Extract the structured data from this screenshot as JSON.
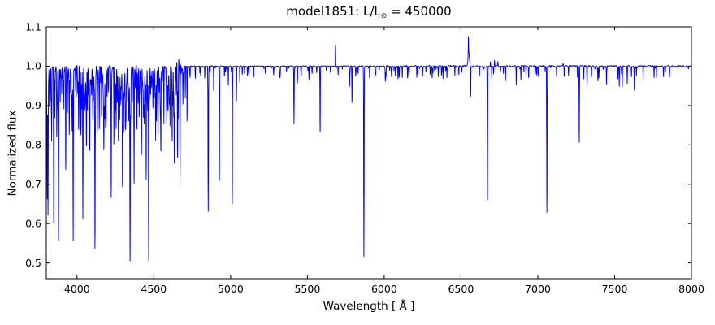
{
  "chart_data": {
    "type": "line",
    "title": {
      "main": "model1851: L/L",
      "sub": "⊙",
      "tail": " = 450000"
    },
    "xlabel": "Wavelength [ Å ]",
    "ylabel": "Normalized flux",
    "xlim": [
      3800,
      8000
    ],
    "ylim": [
      0.46,
      1.1
    ],
    "grid": false,
    "legend": "none",
    "line_color": "#0000ff",
    "background": "#ffffff",
    "xticks": [
      {
        "v": 4000,
        "label": "4000"
      },
      {
        "v": 4500,
        "label": "4500"
      },
      {
        "v": 5000,
        "label": "5000"
      },
      {
        "v": 5500,
        "label": "5500"
      },
      {
        "v": 6000,
        "label": "6000"
      },
      {
        "v": 6500,
        "label": "6500"
      },
      {
        "v": 7000,
        "label": "7000"
      },
      {
        "v": 7500,
        "label": "7500"
      },
      {
        "v": 8000,
        "label": "8000"
      }
    ],
    "yticks": [
      {
        "v": 0.5,
        "label": "0.5"
      },
      {
        "v": 0.6,
        "label": "0.6"
      },
      {
        "v": 0.7,
        "label": "0.7"
      },
      {
        "v": 0.8,
        "label": "0.8"
      },
      {
        "v": 0.9,
        "label": "0.9"
      },
      {
        "v": 1.0,
        "label": "1.0"
      },
      {
        "v": 1.1,
        "label": "1.1"
      }
    ],
    "spectrum": {
      "continuum": 1.0,
      "sample_step": 0.7,
      "absorption_lines": [
        [
          3806,
          0.7,
          1.2
        ],
        [
          3811,
          0.644,
          1.3
        ],
        [
          3820,
          0.9,
          1.0
        ],
        [
          3835,
          0.82,
          1.2
        ],
        [
          3848,
          0.603,
          1.3
        ],
        [
          3856,
          0.9,
          1.0
        ],
        [
          3868,
          0.88,
          1.0
        ],
        [
          3879,
          0.566,
          1.4
        ],
        [
          3890,
          0.92,
          1.0
        ],
        [
          3900,
          0.93,
          1.0
        ],
        [
          3913,
          0.9,
          1.0
        ],
        [
          3926,
          0.82,
          1.2
        ],
        [
          3938,
          0.93,
          1.0
        ],
        [
          3950,
          0.854,
          1.1
        ],
        [
          3964,
          0.91,
          1.0
        ],
        [
          3975,
          0.556,
          1.4
        ],
        [
          3995,
          0.93,
          1.0
        ],
        [
          4010,
          0.86,
          1.1
        ],
        [
          4026,
          0.83,
          1.2
        ],
        [
          4038,
          0.764,
          1.3
        ],
        [
          4050,
          0.92,
          1.0
        ],
        [
          4062,
          0.84,
          1.1
        ],
        [
          4080,
          0.875,
          1.0
        ],
        [
          4095,
          0.93,
          1.0
        ],
        [
          4117,
          0.535,
          1.5
        ],
        [
          4132,
          0.89,
          1.0
        ],
        [
          4145,
          0.854,
          1.1
        ],
        [
          4160,
          0.881,
          1.0
        ],
        [
          4175,
          0.93,
          1.0
        ],
        [
          4190,
          0.92,
          1.0
        ],
        [
          4205,
          0.94,
          1.0
        ],
        [
          4223,
          0.737,
          1.3
        ],
        [
          4240,
          0.805,
          1.1
        ],
        [
          4255,
          0.92,
          1.0
        ],
        [
          4270,
          0.854,
          1.1
        ],
        [
          4285,
          0.93,
          1.0
        ],
        [
          4300,
          0.895,
          1.0
        ],
        [
          4315,
          0.94,
          1.0
        ],
        [
          4345,
          0.545,
          1.5
        ],
        [
          4360,
          0.91,
          1.0
        ],
        [
          4372,
          0.829,
          1.1
        ],
        [
          4390,
          0.84,
          1.1
        ],
        [
          4405,
          0.93,
          1.0
        ],
        [
          4420,
          0.86,
          1.0
        ],
        [
          4435,
          0.92,
          1.0
        ],
        [
          4450,
          0.856,
          1.1
        ],
        [
          4467,
          0.535,
          1.5
        ],
        [
          4480,
          0.95,
          0.9
        ],
        [
          4512,
          0.881,
          1.0
        ],
        [
          4527,
          0.846,
          1.0
        ],
        [
          4546,
          0.86,
          1.0
        ],
        [
          4566,
          0.871,
          1.0
        ],
        [
          4585,
          0.93,
          1.0
        ],
        [
          4606,
          0.86,
          1.0
        ],
        [
          4620,
          0.88,
          1.0
        ],
        [
          4634,
          0.86,
          1.0
        ],
        [
          4655,
          0.762,
          1.2
        ],
        [
          4671,
          0.784,
          1.2
        ],
        [
          4690,
          0.93,
          1.0
        ],
        [
          4705,
          0.92,
          1.0
        ],
        [
          4716,
          0.86,
          1.1
        ],
        [
          4770,
          0.969,
          1.0
        ],
        [
          4805,
          0.975,
          1.0
        ],
        [
          4832,
          0.97,
          1.0
        ],
        [
          4854,
          0.63,
          1.5
        ],
        [
          4890,
          0.938,
          1.0
        ],
        [
          4927,
          0.71,
          1.3
        ],
        [
          4960,
          0.975,
          1.0
        ],
        [
          4985,
          0.952,
          1.0
        ],
        [
          5011,
          0.65,
          1.3
        ],
        [
          5038,
          0.918,
          1.1
        ],
        [
          5060,
          0.96,
          1.0
        ],
        [
          5110,
          0.978,
          1.0
        ],
        [
          5150,
          0.972,
          1.0
        ],
        [
          5226,
          0.982,
          1.0
        ],
        [
          5280,
          0.978,
          1.0
        ],
        [
          5320,
          0.975,
          1.0
        ],
        [
          5413,
          0.856,
          1.3
        ],
        [
          5435,
          0.958,
          1.0
        ],
        [
          5460,
          0.978,
          1.0
        ],
        [
          5510,
          0.965,
          1.0
        ],
        [
          5583,
          0.833,
          1.3
        ],
        [
          5650,
          0.985,
          1.0
        ],
        [
          5700,
          0.978,
          1.0
        ],
        [
          5775,
          0.952,
          1.0
        ],
        [
          5790,
          0.908,
          1.1
        ],
        [
          5868,
          0.517,
          1.5
        ],
        [
          5905,
          0.97,
          1.0
        ],
        [
          5945,
          0.978,
          1.0
        ],
        [
          6012,
          0.975,
          1.0
        ],
        [
          6047,
          0.975,
          1.0
        ],
        [
          6090,
          0.968,
          1.0
        ],
        [
          6118,
          0.972,
          1.0
        ],
        [
          6152,
          0.968,
          1.0
        ],
        [
          6212,
          0.973,
          1.0
        ],
        [
          6250,
          0.978,
          1.0
        ],
        [
          6312,
          0.974,
          1.0
        ],
        [
          6352,
          0.975,
          1.0
        ],
        [
          6408,
          0.97,
          1.0
        ],
        [
          6460,
          0.975,
          1.0
        ],
        [
          6505,
          0.985,
          1.0
        ],
        [
          6563,
          0.923,
          1.2
        ],
        [
          6620,
          0.975,
          1.0
        ],
        [
          6672,
          0.661,
          1.4
        ],
        [
          6700,
          0.97,
          1.0
        ],
        [
          6790,
          0.962,
          1.0
        ],
        [
          6860,
          0.955,
          1.0
        ],
        [
          6890,
          0.965,
          1.0
        ],
        [
          6940,
          0.972,
          1.0
        ],
        [
          7002,
          0.975,
          1.0
        ],
        [
          7059,
          0.628,
          1.4
        ],
        [
          7122,
          0.975,
          1.0
        ],
        [
          7172,
          0.973,
          1.0
        ],
        [
          7200,
          0.978,
          1.0
        ],
        [
          7270,
          0.805,
          1.3
        ],
        [
          7320,
          0.962,
          1.0
        ],
        [
          7350,
          0.975,
          1.0
        ],
        [
          7398,
          0.973,
          1.0
        ],
        [
          7447,
          0.957,
          1.0
        ],
        [
          7530,
          0.951,
          1.0
        ],
        [
          7550,
          0.947,
          1.0
        ],
        [
          7582,
          0.957,
          1.0
        ],
        [
          7628,
          0.947,
          1.0
        ],
        [
          7686,
          0.961,
          1.0
        ],
        [
          7772,
          0.97,
          1.0
        ],
        [
          7818,
          0.975,
          1.0
        ]
      ],
      "emission_lines": [
        [
          4488,
          1.039,
          0.9
        ],
        [
          4506,
          1.028,
          0.9
        ],
        [
          4658,
          1.021,
          13
        ],
        [
          5683,
          1.052,
          0.9
        ],
        [
          6550,
          1.035,
          4.5
        ],
        [
          6548,
          1.042,
          1.0
        ],
        [
          6692,
          1.013,
          1.2
        ],
        [
          6718,
          1.016,
          1.2
        ],
        [
          6740,
          1.012,
          1.2
        ],
        [
          7165,
          1.006,
          1.5
        ]
      ],
      "forest": {
        "seed": 7,
        "regions": [
          {
            "range": [
              3803,
              4700
            ],
            "count": 340,
            "max_depth": 0.1,
            "power": 2.5,
            "width": [
              0.7,
              1.8
            ]
          },
          {
            "range": [
              4700,
              5990
            ],
            "count": 42,
            "max_depth": 0.026,
            "power": 2.0,
            "width": [
              0.8,
              1.6
            ]
          },
          {
            "range": [
              6000,
              6520
            ],
            "count": 28,
            "max_depth": 0.032,
            "power": 2.0,
            "width": [
              0.8,
              1.6
            ]
          },
          {
            "range": [
              6580,
              7990
            ],
            "count": 36,
            "max_depth": 0.028,
            "power": 2.0,
            "width": [
              0.8,
              1.6
            ]
          }
        ]
      },
      "noise": {
        "seed": 3,
        "smooth_k": 5,
        "amp_regions": [
          [
            3800,
            4700,
            0.0028
          ],
          [
            4700,
            6000,
            0.0012
          ],
          [
            6000,
            8000,
            0.0022
          ]
        ]
      }
    }
  }
}
